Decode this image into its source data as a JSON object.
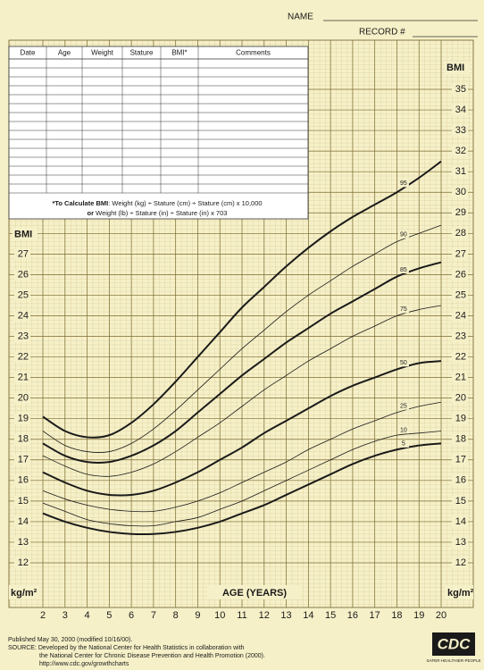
{
  "header": {
    "name_label": "NAME",
    "record_label": "RECORD #"
  },
  "table": {
    "columns": [
      "Date",
      "Age",
      "Weight",
      "Stature",
      "BMI*",
      "Comments"
    ],
    "note": {
      "line1_bold": "*To Calculate BMI",
      "line1": ": Weight (kg) ÷ Stature (cm) ÷ Stature (cm) x 10,000",
      "line2_bold": "or",
      "line2": " Weight (lb) ÷ Stature (in) ÷ Stature (in) x 703"
    }
  },
  "chart_data": {
    "type": "line",
    "ylabel": "BMI",
    "yunit": "kg/m²",
    "xlabel": "AGE (YEARS)",
    "x": [
      2,
      3,
      4,
      5,
      6,
      7,
      8,
      9,
      10,
      11,
      12,
      13,
      14,
      15,
      16,
      17,
      18,
      19,
      20
    ],
    "xlim": [
      2,
      20
    ],
    "xticks": [
      2,
      3,
      4,
      5,
      6,
      7,
      8,
      9,
      10,
      11,
      12,
      13,
      14,
      15,
      16,
      17,
      18,
      19,
      20
    ],
    "ylim": [
      12,
      35
    ],
    "yticks": [
      12,
      13,
      14,
      15,
      16,
      17,
      18,
      19,
      20,
      21,
      22,
      23,
      24,
      25,
      26,
      27,
      28,
      29,
      30,
      31,
      32,
      33,
      34,
      35
    ],
    "left_yticks": [
      12,
      13,
      14,
      15,
      16,
      17,
      18,
      19,
      20,
      21,
      22,
      23,
      24,
      25,
      26,
      27
    ],
    "grid": true,
    "series": [
      {
        "name": "95",
        "color": "#1a1a1a",
        "linewidth": 2,
        "values": [
          19.1,
          18.4,
          18.1,
          18.2,
          18.8,
          19.7,
          20.8,
          22.0,
          23.2,
          24.4,
          25.4,
          26.4,
          27.3,
          28.1,
          28.8,
          29.4,
          30.0,
          30.7,
          31.5
        ]
      },
      {
        "name": "90",
        "color": "#1a1a1a",
        "linewidth": 0.8,
        "values": [
          18.4,
          17.7,
          17.4,
          17.4,
          17.8,
          18.5,
          19.4,
          20.4,
          21.4,
          22.4,
          23.3,
          24.2,
          25.0,
          25.7,
          26.4,
          27.0,
          27.6,
          28.0,
          28.4
        ]
      },
      {
        "name": "85",
        "color": "#1a1a1a",
        "linewidth": 2,
        "values": [
          17.8,
          17.2,
          16.9,
          16.9,
          17.2,
          17.7,
          18.4,
          19.3,
          20.2,
          21.1,
          21.9,
          22.7,
          23.4,
          24.1,
          24.7,
          25.3,
          25.9,
          26.3,
          26.6
        ]
      },
      {
        "name": "75",
        "color": "#1a1a1a",
        "linewidth": 0.8,
        "values": [
          17.2,
          16.7,
          16.3,
          16.2,
          16.4,
          16.8,
          17.4,
          18.1,
          18.8,
          19.6,
          20.4,
          21.1,
          21.8,
          22.4,
          23.0,
          23.5,
          24.0,
          24.3,
          24.5
        ]
      },
      {
        "name": "50",
        "color": "#1a1a1a",
        "linewidth": 2,
        "values": [
          16.4,
          15.9,
          15.5,
          15.3,
          15.3,
          15.5,
          15.9,
          16.4,
          17.0,
          17.6,
          18.3,
          18.9,
          19.5,
          20.1,
          20.6,
          21.0,
          21.4,
          21.7,
          21.8
        ]
      },
      {
        "name": "25",
        "color": "#1a1a1a",
        "linewidth": 0.8,
        "values": [
          15.5,
          15.1,
          14.8,
          14.6,
          14.5,
          14.5,
          14.7,
          15.0,
          15.4,
          15.9,
          16.4,
          16.9,
          17.5,
          18.0,
          18.5,
          18.9,
          19.3,
          19.6,
          19.8
        ]
      },
      {
        "name": "10",
        "color": "#1a1a1a",
        "linewidth": 0.8,
        "values": [
          14.9,
          14.5,
          14.1,
          13.9,
          13.8,
          13.8,
          14.0,
          14.2,
          14.6,
          15.0,
          15.5,
          16.0,
          16.5,
          17.0,
          17.5,
          17.9,
          18.2,
          18.3,
          18.4
        ]
      },
      {
        "name": "5",
        "color": "#1a1a1a",
        "linewidth": 2,
        "values": [
          14.4,
          14.0,
          13.7,
          13.5,
          13.4,
          13.4,
          13.5,
          13.7,
          14.0,
          14.4,
          14.8,
          15.3,
          15.8,
          16.3,
          16.8,
          17.2,
          17.5,
          17.7,
          17.8
        ]
      }
    ]
  },
  "footer": {
    "published": "Published May 30, 2000 (modified 10/16/00).",
    "source1": "SOURCE: Developed by the National Center for Health Statistics in collaboration with",
    "source2": "the National Center for Chronic Disease Prevention and Health Promotion (2000).",
    "url": "http://www.cdc.gov/growthcharts"
  },
  "logo": {
    "text": "CDC",
    "tagline": "SAFER·HEALTHIER·PEOPLE"
  }
}
